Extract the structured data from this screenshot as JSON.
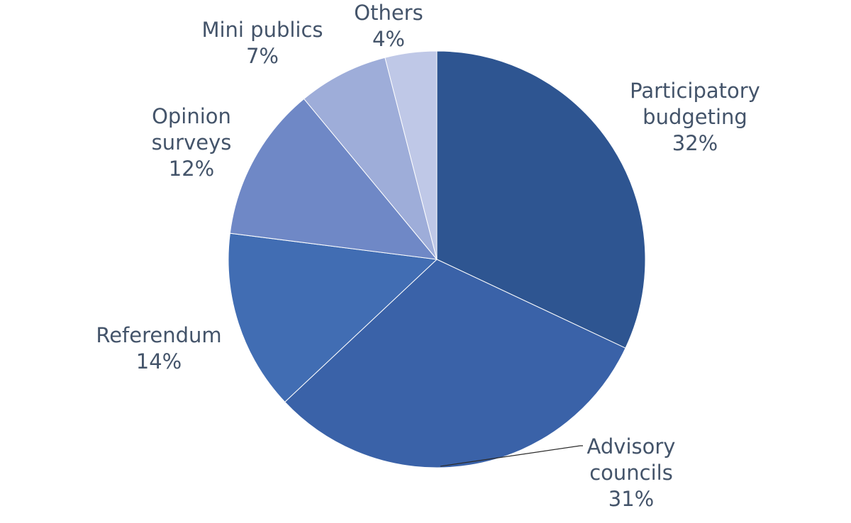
{
  "chart_data": {
    "type": "pie",
    "title": "",
    "start_angle": "12 o'clock",
    "direction": "clockwise",
    "slices": [
      {
        "label_lines": [
          "Participatory",
          "budgeting"
        ],
        "value": 32,
        "value_label": "32%",
        "color": "#2e5591"
      },
      {
        "label_lines": [
          "Advisory",
          "councils"
        ],
        "value": 31,
        "value_label": "31%",
        "color": "#3a62a8"
      },
      {
        "label_lines": [
          "Referendum"
        ],
        "value": 14,
        "value_label": "14%",
        "color": "#416db3"
      },
      {
        "label_lines": [
          "Opinion",
          "surveys"
        ],
        "value": 12,
        "value_label": "12%",
        "color": "#6f88c6"
      },
      {
        "label_lines": [
          "Mini publics"
        ],
        "value": 7,
        "value_label": "7%",
        "color": "#9eadd9"
      },
      {
        "label_lines": [
          "Others"
        ],
        "value": 4,
        "value_label": "4%",
        "color": "#bfc8e7"
      }
    ]
  }
}
